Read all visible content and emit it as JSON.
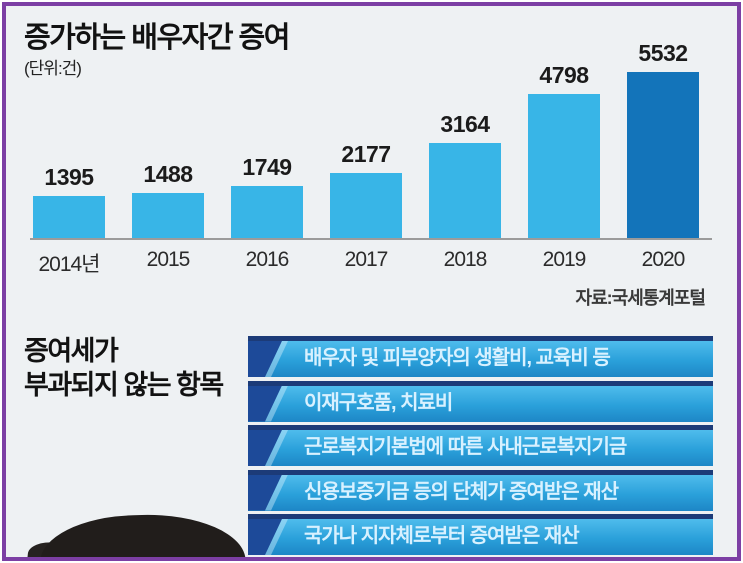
{
  "frame": {
    "border_color": "#7c3fa4",
    "background_color": "#eef1f3"
  },
  "chart_data": {
    "type": "bar",
    "title": "증가하는 배우자간 증여",
    "unit": "(단위:건)",
    "source": "자료:국세통계포털",
    "categories": [
      "2014년",
      "2015",
      "2016",
      "2017",
      "2018",
      "2019",
      "2020"
    ],
    "values": [
      1395,
      1488,
      1749,
      2177,
      3164,
      4798,
      5532
    ],
    "ylim": [
      0,
      5800
    ],
    "data_labels": true,
    "grid": false,
    "legend": "none",
    "bar_color": "#38b5e7",
    "highlight_color": "#1374ba",
    "highlight_index": 6
  },
  "tax_free": {
    "heading_line1": "증여세가",
    "heading_line2": "부과되지 않는 항목",
    "items": [
      "배우자 및 피부양자의 생활비, 교육비 등",
      "이재구호품, 치료비",
      "근로복지기본법에 따른 사내근로복지기금",
      "신용보증기금 등의 단체가 증여받은 재산",
      "국가나 지자체로부터 증여받은 재산"
    ],
    "banner_colors": {
      "accent_dark": "#1d4a99",
      "top_edge": "#1c3b78",
      "body_top": "#4fbcec",
      "body_bottom": "#1d86c6",
      "text": "#d8f1ff"
    }
  }
}
